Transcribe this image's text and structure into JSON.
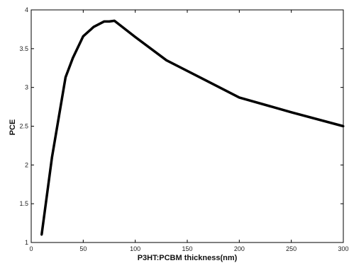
{
  "chart_data": {
    "type": "line",
    "title": "",
    "xlabel": "P3HT:PCBM thickness(nm)",
    "ylabel": "PCE",
    "xlim": [
      0,
      300
    ],
    "ylim": [
      1,
      4
    ],
    "xticks": [
      "0",
      "50",
      "100",
      "150",
      "200",
      "250",
      "300"
    ],
    "yticks": [
      "1",
      "1.5",
      "2",
      "2.5",
      "3",
      "3.5",
      "4"
    ],
    "grid": false,
    "series": [
      {
        "x": [
          10,
          20,
          33,
          40,
          50,
          60,
          70,
          75,
          80,
          100,
          130,
          165,
          200,
          250,
          300
        ],
        "values": [
          1.1,
          2.1,
          3.13,
          3.38,
          3.66,
          3.78,
          3.85,
          3.85,
          3.86,
          3.65,
          3.35,
          3.11,
          2.87,
          2.68,
          2.5
        ],
        "color": "#000000"
      }
    ]
  }
}
